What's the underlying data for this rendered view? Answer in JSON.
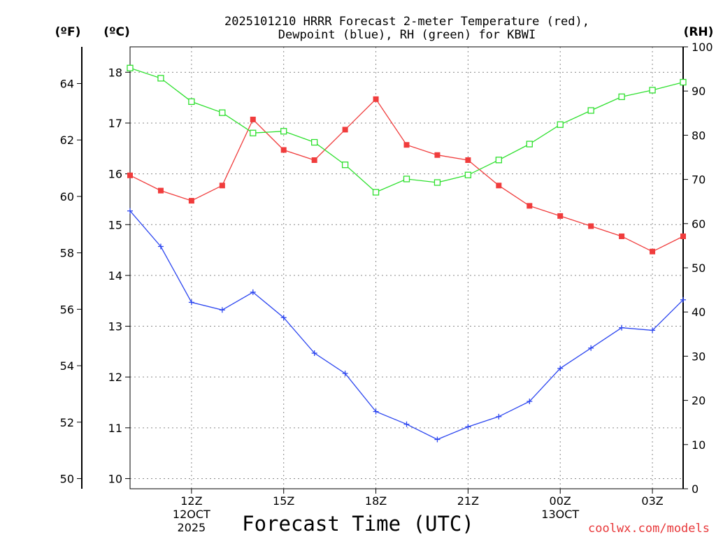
{
  "chart_data": {
    "type": "line",
    "title_line1": "2025101210 HRRR Forecast 2-meter Temperature (red),",
    "title_line2": "Dewpoint (blue), RH (green) for KBWI",
    "xlabel": "Forecast Time (UTC)",
    "credit": "coolwx.com/models",
    "unit_labels": {
      "fahrenheit": "(ºF)",
      "celsius": "(ºC)",
      "rh": "(RH)"
    },
    "x_hours": [
      10,
      11,
      12,
      13,
      14,
      15,
      16,
      17,
      18,
      19,
      20,
      21,
      22,
      23,
      24,
      25,
      26,
      27,
      28
    ],
    "x_range": [
      10,
      28
    ],
    "x_ticks": [
      {
        "hour": 12,
        "label": "12Z",
        "sub1": "12OCT",
        "sub2": "2025"
      },
      {
        "hour": 15,
        "label": "15Z",
        "sub1": "",
        "sub2": ""
      },
      {
        "hour": 18,
        "label": "18Z",
        "sub1": "",
        "sub2": ""
      },
      {
        "hour": 21,
        "label": "21Z",
        "sub1": "",
        "sub2": ""
      },
      {
        "hour": 24,
        "label": "00Z",
        "sub1": "13OCT",
        "sub2": ""
      },
      {
        "hour": 27,
        "label": "03Z",
        "sub1": "",
        "sub2": ""
      }
    ],
    "celsius_range": [
      9.8,
      18.5
    ],
    "celsius_ticks": [
      10,
      11,
      12,
      13,
      14,
      15,
      16,
      17,
      18
    ],
    "fahrenheit_ticks": [
      50,
      52,
      54,
      56,
      58,
      60,
      62,
      64
    ],
    "rh_range": [
      0,
      100
    ],
    "rh_ticks": [
      0,
      10,
      20,
      30,
      40,
      50,
      60,
      70,
      80,
      90,
      100
    ],
    "series": [
      {
        "name": "Temperature",
        "axis": "celsius",
        "color": "#f03c3c",
        "marker": "filled-square",
        "values": [
          15.97,
          15.67,
          15.47,
          15.77,
          17.07,
          16.47,
          16.27,
          16.87,
          17.47,
          16.57,
          16.37,
          16.27,
          15.77,
          15.37,
          15.17,
          14.97,
          14.77,
          14.47,
          14.77
        ]
      },
      {
        "name": "Dewpoint",
        "axis": "celsius",
        "color": "#2c46f0",
        "marker": "plus",
        "values": [
          15.27,
          14.57,
          13.47,
          13.32,
          13.67,
          13.17,
          12.47,
          12.07,
          11.32,
          11.07,
          10.77,
          11.02,
          11.22,
          11.52,
          12.17,
          12.57,
          12.97,
          12.92,
          13.52
        ]
      },
      {
        "name": "RH",
        "axis": "rh",
        "color": "#2ee02e",
        "marker": "open-square",
        "values": [
          95.2,
          92.9,
          87.6,
          85.1,
          80.5,
          80.9,
          78.4,
          73.3,
          67.1,
          70.1,
          69.3,
          71.0,
          74.4,
          78.0,
          82.4,
          85.6,
          88.7,
          90.2,
          92.0
        ]
      }
    ]
  }
}
